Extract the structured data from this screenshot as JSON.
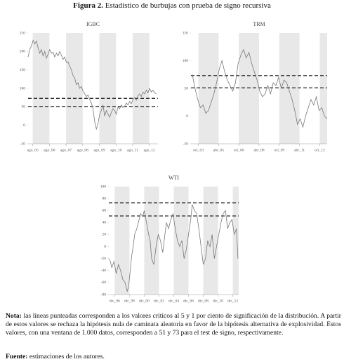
{
  "figure": {
    "label": "Figura 2.",
    "title": "Estadístico de burbujas con prueba de signo recursiva"
  },
  "chart_data": [
    {
      "type": "line",
      "title": "IGBC",
      "xlim": [
        2005.3,
        2013.1
      ],
      "xticks": [
        {
          "value": 2005.58,
          "label": "ago_05"
        },
        {
          "value": 2006.58,
          "label": "ago_06"
        },
        {
          "value": 2007.58,
          "label": "ago_07"
        },
        {
          "value": 2008.58,
          "label": "ago_08"
        },
        {
          "value": 2009.58,
          "label": "ago_09"
        },
        {
          "value": 2010.58,
          "label": "ago_10"
        },
        {
          "value": 2011.58,
          "label": "ago_11"
        },
        {
          "value": 2012.58,
          "label": "ago_12"
        }
      ],
      "ylim": [
        -50,
        250
      ],
      "yticks": [
        -50,
        0,
        50,
        100,
        150,
        200,
        250
      ],
      "critical_values": [
        51,
        73
      ],
      "shaded_bands": true,
      "series": [
        {
          "color": "#777777",
          "x": [
            2005.3,
            2005.4,
            2005.5,
            2005.6,
            2005.7,
            2005.8,
            2005.9,
            2006.0,
            2006.1,
            2006.2,
            2006.3,
            2006.4,
            2006.5,
            2006.6,
            2006.7,
            2006.8,
            2006.9,
            2007.0,
            2007.1,
            2007.2,
            2007.3,
            2007.4,
            2007.5,
            2007.6,
            2007.7,
            2007.8,
            2007.9,
            2008.0,
            2008.1,
            2008.2,
            2008.3,
            2008.4,
            2008.5,
            2008.6,
            2008.7,
            2008.8,
            2008.9,
            2009.0,
            2009.1,
            2009.2,
            2009.3,
            2009.4,
            2009.5,
            2009.6,
            2009.7,
            2009.8,
            2009.9,
            2010.0,
            2010.1,
            2010.2,
            2010.3,
            2010.4,
            2010.5,
            2010.6,
            2010.7,
            2010.8,
            2010.9,
            2011.0,
            2011.1,
            2011.2,
            2011.3,
            2011.4,
            2011.5,
            2011.6,
            2011.7,
            2011.8,
            2011.9,
            2012.0,
            2012.1,
            2012.2,
            2012.3,
            2012.4,
            2012.5,
            2012.6,
            2012.7,
            2012.8,
            2012.9,
            2013.0
          ],
          "values": [
            185,
            205,
            215,
            230,
            220,
            228,
            210,
            195,
            205,
            188,
            200,
            182,
            192,
            205,
            195,
            198,
            185,
            195,
            188,
            200,
            190,
            178,
            185,
            170,
            172,
            160,
            150,
            135,
            128,
            110,
            115,
            100,
            105,
            92,
            85,
            78,
            82,
            70,
            60,
            45,
            10,
            -10,
            5,
            30,
            40,
            55,
            25,
            40,
            30,
            22,
            35,
            45,
            40,
            30,
            50,
            45,
            55,
            48,
            52,
            60,
            55,
            65,
            58,
            70,
            75,
            68,
            80,
            85,
            78,
            90,
            85,
            95,
            88,
            100,
            90,
            95,
            88,
            85
          ]
        }
      ]
    },
    {
      "type": "line",
      "title": "TRM",
      "xlim": [
        2003.2,
        2013.3
      ],
      "xticks": [
        {
          "value": 2003.75,
          "label": "oct_03"
        },
        {
          "value": 2005.25,
          "label": "abr_05"
        },
        {
          "value": 2006.75,
          "label": "oct_06"
        },
        {
          "value": 2008.25,
          "label": "abr_08"
        },
        {
          "value": 2009.75,
          "label": "oct_09"
        },
        {
          "value": 2011.25,
          "label": "abr_11"
        },
        {
          "value": 2012.75,
          "label": "oct_12"
        }
      ],
      "ylim": [
        -50,
        150
      ],
      "yticks": [
        -50,
        0,
        50,
        100,
        150
      ],
      "critical_values": [
        51,
        73
      ],
      "shaded_bands": true,
      "series": [
        {
          "color": "#777777",
          "x": [
            2003.3,
            2003.5,
            2003.7,
            2003.9,
            2004.1,
            2004.3,
            2004.5,
            2004.7,
            2004.9,
            2005.1,
            2005.3,
            2005.5,
            2005.7,
            2005.9,
            2006.1,
            2006.3,
            2006.5,
            2006.7,
            2006.9,
            2007.1,
            2007.3,
            2007.5,
            2007.7,
            2007.9,
            2008.1,
            2008.3,
            2008.5,
            2008.7,
            2008.9,
            2009.1,
            2009.3,
            2009.5,
            2009.7,
            2009.9,
            2010.1,
            2010.3,
            2010.5,
            2010.7,
            2010.9,
            2011.1,
            2011.3,
            2011.5,
            2011.7,
            2011.9,
            2012.1,
            2012.3,
            2012.5,
            2012.7,
            2012.9,
            2013.1,
            2013.3
          ],
          "values": [
            75,
            50,
            30,
            15,
            20,
            5,
            10,
            25,
            40,
            60,
            85,
            100,
            80,
            65,
            55,
            45,
            60,
            95,
            110,
            120,
            105,
            115,
            95,
            80,
            65,
            45,
            35,
            40,
            55,
            40,
            60,
            55,
            70,
            50,
            65,
            60,
            45,
            30,
            10,
            -15,
            -5,
            -20,
            0,
            15,
            30,
            20,
            35,
            10,
            15,
            0,
            -5
          ]
        }
      ]
    },
    {
      "type": "line",
      "title": "WTI",
      "xlim": [
        1996.2,
        2013.8
      ],
      "xticks": [
        {
          "value": 1997.0,
          "label": "dic_96"
        },
        {
          "value": 1999.0,
          "label": "dic_98"
        },
        {
          "value": 2001.0,
          "label": "dic_00"
        },
        {
          "value": 2003.0,
          "label": "dic_02"
        },
        {
          "value": 2005.0,
          "label": "dic_04"
        },
        {
          "value": 2007.0,
          "label": "dic_06"
        },
        {
          "value": 2009.0,
          "label": "dic_08"
        },
        {
          "value": 2011.0,
          "label": "dic_10"
        },
        {
          "value": 2013.0,
          "label": "dic_12"
        }
      ],
      "ylim": [
        -80,
        100
      ],
      "yticks": [
        -80,
        -60,
        -40,
        -20,
        0,
        20,
        40,
        60,
        80,
        100
      ],
      "critical_values": [
        51,
        73
      ],
      "shaded_bands": true,
      "series": [
        {
          "color": "#777777",
          "x": [
            1996.3,
            1996.6,
            1996.9,
            1997.2,
            1997.5,
            1997.8,
            1998.1,
            1998.4,
            1998.7,
            1998.9,
            1999.1,
            1999.3,
            1999.5,
            1999.7,
            2000.0,
            2000.3,
            2000.5,
            2000.8,
            2001.0,
            2001.3,
            2001.6,
            2001.8,
            2002.0,
            2002.3,
            2002.6,
            2002.9,
            2003.2,
            2003.5,
            2003.8,
            2004.0,
            2004.3,
            2004.6,
            2004.9,
            2005.2,
            2005.5,
            2005.8,
            2006.1,
            2006.4,
            2006.7,
            2007.0,
            2007.3,
            2007.5,
            2007.8,
            2008.1,
            2008.4,
            2008.7,
            2009.0,
            2009.3,
            2009.6,
            2009.9,
            2010.2,
            2010.5,
            2010.8,
            2011.1,
            2011.4,
            2011.7,
            2012.0,
            2012.3,
            2012.6,
            2012.9,
            2013.2,
            2013.5,
            2013.7
          ],
          "values": [
            -20,
            -35,
            -25,
            -45,
            -30,
            -40,
            -55,
            -60,
            -75,
            -65,
            -40,
            -15,
            0,
            20,
            30,
            45,
            55,
            50,
            60,
            40,
            20,
            10,
            -20,
            -30,
            0,
            20,
            10,
            -10,
            20,
            40,
            30,
            45,
            55,
            30,
            10,
            0,
            10,
            -20,
            -5,
            20,
            45,
            70,
            60,
            55,
            30,
            0,
            -30,
            -20,
            10,
            0,
            20,
            -20,
            0,
            20,
            40,
            55,
            60,
            30,
            40,
            45,
            20,
            30,
            -20
          ]
        }
      ]
    }
  ],
  "note": {
    "label": "Nota:",
    "text": "las líneas punteadas corresponden a los valores críticos al 5 y 1 por ciento de significación de la distribución. A partir de estos valores se rechaza la hipótesis nula de caminata aleatoria en favor de la hipótesis alternativa de explosividad. Estos valores, con una ventana de 1.000 datos, corresponden a 51 y 73 para el test de signo, respectivamente."
  },
  "source": {
    "label": "Fuente:",
    "text": "estimaciones de los autores."
  }
}
